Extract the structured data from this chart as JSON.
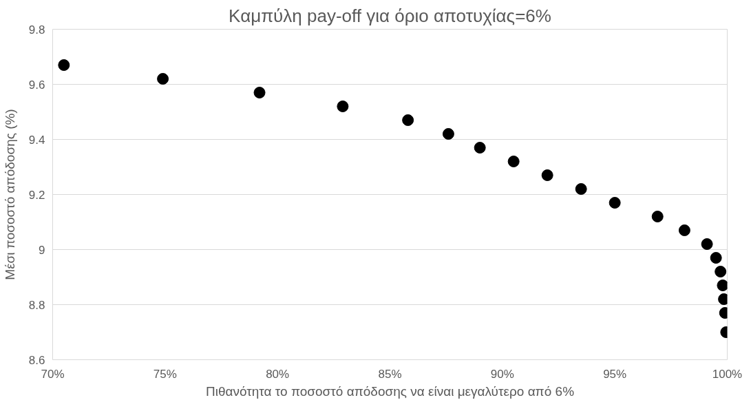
{
  "chart_data": {
    "type": "scatter",
    "title": "Καμπύλη pay-off για όριο αποτυχίας=6%",
    "xlabel": "Πιθανότητα το ποσοστό απόδοσης να είναι μεγαλύτερο από 6%",
    "ylabel": "Μέσι ποσοστό απόδοσης (%)",
    "x": [
      70.5,
      74.9,
      79.2,
      82.9,
      85.8,
      87.6,
      89.0,
      90.5,
      92.0,
      93.5,
      95.0,
      96.9,
      98.1,
      99.1,
      99.5,
      99.7,
      99.8,
      99.85,
      99.9,
      99.95
    ],
    "series": [
      {
        "color": "#000000",
        "values": [
          9.67,
          9.62,
          9.57,
          9.52,
          9.47,
          9.42,
          9.37,
          9.32,
          9.27,
          9.22,
          9.17,
          9.12,
          9.07,
          9.02,
          8.97,
          8.92,
          8.87,
          8.82,
          8.77,
          8.7
        ]
      }
    ],
    "xlim": [
      70,
      100
    ],
    "ylim": [
      8.6,
      9.8
    ],
    "xticks": [
      {
        "value": 70,
        "label": "70%"
      },
      {
        "value": 75,
        "label": "75%"
      },
      {
        "value": 80,
        "label": "80%"
      },
      {
        "value": 85,
        "label": "85%"
      },
      {
        "value": 90,
        "label": "90%"
      },
      {
        "value": 95,
        "label": "95%"
      },
      {
        "value": 100,
        "label": "100%"
      }
    ],
    "yticks": [
      8.6,
      8.8,
      9,
      9.2,
      9.4,
      9.6,
      9.8
    ],
    "grid": "y",
    "marker": "circle"
  }
}
